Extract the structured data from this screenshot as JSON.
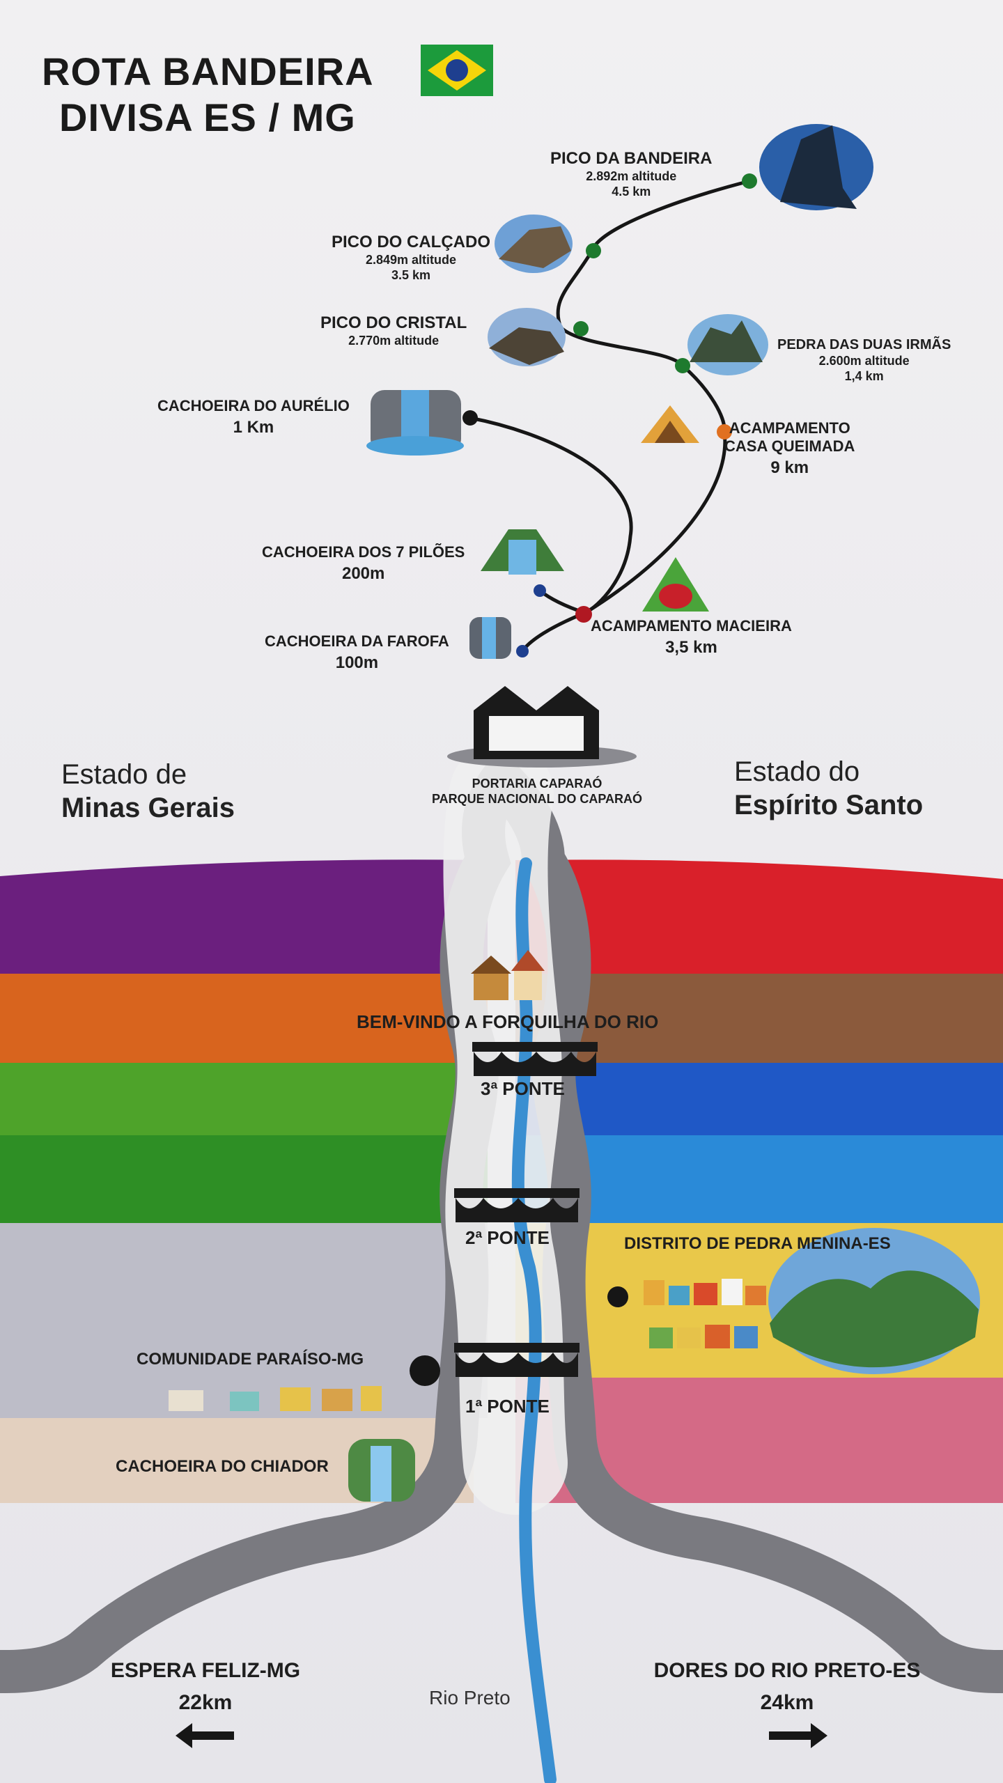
{
  "header": {
    "line1": "ROTA BANDEIRA",
    "line2": "DIVISA ES / MG",
    "flag_colors": {
      "green": "#1c9b3c",
      "yellow": "#f5d50a",
      "blue": "#1e3f8f"
    }
  },
  "summit": {
    "pico_bandeira": {
      "name": "PICO DA BANDEIRA",
      "alt": "2.892m altitude",
      "dist": "4.5 km"
    },
    "pico_calcado": {
      "name": "PICO DO CALÇADO",
      "alt": "2.849m altitude",
      "dist": "3.5 km"
    },
    "pico_cristal": {
      "name": "PICO DO CRISTAL",
      "alt": "2.770m altitude"
    },
    "pedra_duas_irmas": {
      "name": "PEDRA DAS DUAS IRMÃS",
      "alt": "2.600m altitude",
      "dist": "1,4 km"
    },
    "cachoeira_aurelio": {
      "name": "CACHOEIRA DO AURÉLIO",
      "dist": "1 Km"
    },
    "acampamento_casa_queimada": {
      "name1": "ACAMPAMENTO",
      "name2": "CASA QUEIMADA",
      "dist": "9 km"
    },
    "cachoeira_7_piloes": {
      "name": "CACHOEIRA DOS 7 PILÕES",
      "dist": "200m"
    },
    "acampamento_macieira": {
      "name": "ACAMPAMENTO MACIEIRA",
      "dist": "3,5 km"
    },
    "cachoeira_farofa": {
      "name": "CACHOEIRA DA FAROFA",
      "dist": "100m"
    }
  },
  "portaria": {
    "line1": "PORTARIA CAPARAÓ",
    "line2": "PARQUE NACIONAL DO CAPARAÓ"
  },
  "states": {
    "left_line1": "Estado de",
    "left_line2": "Minas Gerais",
    "right_line1": "Estado do",
    "right_line2": "Espírito Santo"
  },
  "route": {
    "forquilha": "BEM-VINDO A FORQUILHA DO RIO",
    "ponte3": "3ª PONTE",
    "ponte2": "2ª PONTE",
    "ponte1": "1ª PONTE",
    "pedra_menina": "DISTRITO DE PEDRA MENINA-ES",
    "paraiso": "COMUNIDADE PARAÍSO-MG",
    "chiador": "CACHOEIRA DO CHIADOR"
  },
  "bottom": {
    "left_city": "ESPERA FELIZ-MG",
    "left_dist": "22km",
    "left_arrow": "🡸",
    "right_city": "DORES DO RIO PRETO-ES",
    "right_dist": "24km",
    "right_arrow": "🡺",
    "river": "Rio Preto"
  },
  "colors": {
    "mg": [
      "#6b1f7e",
      "#d8641e",
      "#4ea32a",
      "#2e8f25",
      "#b8b8c4",
      "#e0cbb8"
    ],
    "es": [
      "#d9202a",
      "#8b5a3c",
      "#1f58c6",
      "#2784d6",
      "#e9c84a",
      "#d46a86"
    ],
    "road": "#7a7a80",
    "river": "#3a8fd1",
    "dot_green": "#1e7a2e",
    "dot_orange": "#e07020",
    "dot_red": "#b01822",
    "dot_blue": "#1e3f8f"
  }
}
